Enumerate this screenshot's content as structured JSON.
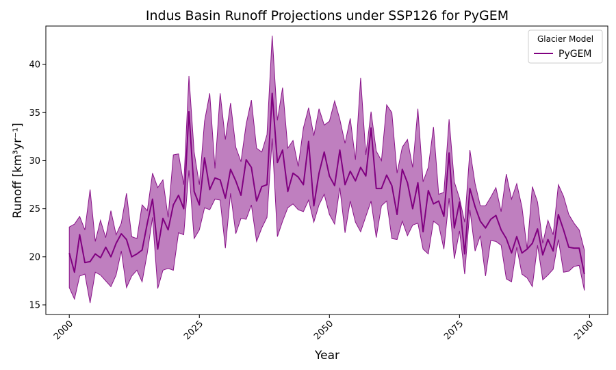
{
  "chart_data": {
    "type": "line",
    "title": "Indus Basin Runoff Projections under SSP126 for PyGEM",
    "xlabel": "Year",
    "ylabel": "Runoff [km³yr⁻¹]",
    "xlim": [
      1995.5,
      2103.5
    ],
    "ylim": [
      14.0,
      44.0
    ],
    "xticks": [
      2000,
      2025,
      2050,
      2075,
      2100
    ],
    "yticks": [
      15,
      20,
      25,
      30,
      35,
      40
    ],
    "grid": false,
    "legend": {
      "title": "Glacier Model",
      "placement": "top-right",
      "entries": [
        "PyGEM"
      ]
    },
    "colors": {
      "line": "#800080",
      "band": "#800080",
      "band_opacity": 0.5
    },
    "x": [
      2000,
      2001,
      2002,
      2003,
      2004,
      2005,
      2006,
      2007,
      2008,
      2009,
      2010,
      2011,
      2012,
      2013,
      2014,
      2015,
      2016,
      2017,
      2018,
      2019,
      2020,
      2021,
      2022,
      2023,
      2024,
      2025,
      2026,
      2027,
      2028,
      2029,
      2030,
      2031,
      2032,
      2033,
      2034,
      2035,
      2036,
      2037,
      2038,
      2039,
      2040,
      2041,
      2042,
      2043,
      2044,
      2045,
      2046,
      2047,
      2048,
      2049,
      2050,
      2051,
      2052,
      2053,
      2054,
      2055,
      2056,
      2057,
      2058,
      2059,
      2060,
      2061,
      2062,
      2063,
      2064,
      2065,
      2066,
      2067,
      2068,
      2069,
      2070,
      2071,
      2072,
      2073,
      2074,
      2075,
      2076,
      2077,
      2078,
      2079,
      2080,
      2081,
      2082,
      2083,
      2084,
      2085,
      2086,
      2087,
      2088,
      2089,
      2090,
      2091,
      2092,
      2093,
      2094,
      2095,
      2096,
      2097,
      2098,
      2099
    ],
    "series": [
      {
        "name": "PyGEM",
        "mean": [
          20.4,
          18.4,
          22.3,
          19.4,
          19.5,
          20.3,
          19.9,
          21.0,
          20.0,
          21.4,
          22.4,
          21.8,
          20.0,
          20.3,
          20.7,
          23.5,
          26.0,
          20.8,
          24.0,
          22.8,
          25.4,
          26.4,
          25.0,
          35.1,
          26.8,
          25.4,
          30.3,
          27.0,
          28.2,
          28.0,
          26.1,
          29.1,
          27.9,
          26.4,
          30.1,
          29.3,
          25.8,
          27.3,
          27.5,
          37.0,
          29.8,
          31.1,
          26.8,
          28.7,
          28.3,
          27.5,
          32.0,
          25.3,
          28.7,
          30.9,
          28.4,
          27.4,
          31.1,
          27.5,
          28.9,
          27.9,
          29.3,
          28.4,
          33.4,
          27.1,
          27.1,
          28.5,
          27.4,
          24.4,
          29.1,
          27.7,
          25.0,
          27.7,
          22.6,
          26.9,
          25.5,
          25.8,
          24.2,
          30.8,
          23.0,
          25.7,
          20.3,
          27.1,
          25.2,
          23.7,
          23.0,
          23.9,
          24.3,
          22.8,
          21.9,
          20.4,
          22.1,
          20.4,
          20.8,
          21.4,
          22.9,
          20.2,
          21.8,
          20.6,
          24.4,
          22.8,
          21.0,
          20.9,
          20.9,
          18.2
        ],
        "lower": [
          16.8,
          15.6,
          18.0,
          18.2,
          15.2,
          18.4,
          18.1,
          17.5,
          16.9,
          18.1,
          20.6,
          16.8,
          18.0,
          18.6,
          17.4,
          20.4,
          24.1,
          16.7,
          18.6,
          18.8,
          18.6,
          22.5,
          22.3,
          29.0,
          21.9,
          22.8,
          25.1,
          24.9,
          26.0,
          25.9,
          20.9,
          26.6,
          22.4,
          24.0,
          23.9,
          25.4,
          21.6,
          23.0,
          24.1,
          32.3,
          22.1,
          23.7,
          25.1,
          25.5,
          24.9,
          24.7,
          25.9,
          23.6,
          25.4,
          26.5,
          24.4,
          23.4,
          27.2,
          22.5,
          25.8,
          23.6,
          22.6,
          24.2,
          25.8,
          22.0,
          25.3,
          25.8,
          21.9,
          21.8,
          23.7,
          22.2,
          23.3,
          23.5,
          20.8,
          20.3,
          23.7,
          23.3,
          20.8,
          26.1,
          19.8,
          22.7,
          18.2,
          24.9,
          20.6,
          22.2,
          18.0,
          21.7,
          21.6,
          21.2,
          17.7,
          17.4,
          21.0,
          18.2,
          17.8,
          16.9,
          21.2,
          17.6,
          18.1,
          18.7,
          21.8,
          18.4,
          18.5,
          19.0,
          19.1,
          16.5
        ],
        "upper": [
          23.1,
          23.4,
          24.2,
          22.8,
          27.0,
          21.6,
          23.8,
          22.0,
          24.8,
          22.3,
          23.5,
          26.6,
          22.1,
          21.9,
          25.4,
          24.8,
          28.7,
          27.2,
          28.0,
          24.1,
          30.6,
          30.7,
          27.5,
          38.8,
          30.9,
          27.5,
          34.1,
          37.0,
          29.2,
          37.0,
          32.2,
          36.0,
          31.4,
          29.9,
          33.8,
          36.3,
          31.3,
          30.9,
          32.7,
          43.0,
          34.2,
          37.6,
          31.3,
          32.1,
          29.4,
          33.4,
          35.5,
          32.6,
          35.4,
          33.7,
          34.1,
          36.2,
          34.3,
          31.8,
          34.4,
          30.1,
          38.6,
          30.6,
          35.1,
          31.0,
          30.0,
          35.8,
          35.0,
          28.7,
          31.4,
          32.2,
          29.3,
          35.4,
          27.8,
          29.3,
          33.5,
          26.5,
          26.7,
          34.3,
          27.8,
          26.1,
          23.6,
          31.1,
          27.6,
          25.3,
          25.3,
          26.2,
          27.2,
          24.7,
          28.6,
          26.0,
          27.6,
          25.2,
          20.8,
          27.3,
          25.7,
          21.4,
          23.8,
          22.3,
          27.5,
          26.3,
          24.4,
          23.5,
          22.8,
          20.7
        ]
      }
    ]
  }
}
